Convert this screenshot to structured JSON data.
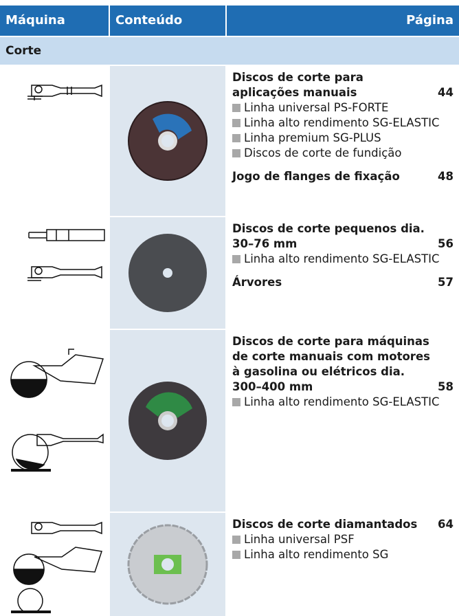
{
  "header": {
    "machine": "Máquina",
    "content": "Conteúdo",
    "page": "Página"
  },
  "section": "Corte",
  "rows": [
    {
      "entries": [
        {
          "title": "Discos de corte para aplicações manuais",
          "page": "44",
          "bullets": [
            "Linha universal PS-FORTE",
            "Linha alto rendimento SG-ELASTIC",
            "Linha premium SG-PLUS",
            "Discos de corte de fundição"
          ]
        },
        {
          "title": "Jogo de flanges de fixação",
          "page": "48",
          "bullets": []
        }
      ]
    },
    {
      "entries": [
        {
          "title": "Discos de corte pequenos dia. 30–76 mm",
          "page": "56",
          "bullets": [
            "Linha alto rendimento SG-ELASTIC"
          ]
        },
        {
          "title": "Árvores",
          "page": "57",
          "bullets": []
        }
      ]
    },
    {
      "entries": [
        {
          "title": "Discos de corte para máquinas de corte manuais com motores à gasolina ou elétricos dia. 300–400 mm",
          "page": "58",
          "bullets": [
            "Linha alto rendimento SG-ELASTIC"
          ]
        }
      ]
    },
    {
      "entries": [
        {
          "title": "Discos de corte diamantados",
          "page": "64",
          "bullets": [
            "Linha universal PSF",
            "Linha alto rendimento SG"
          ]
        }
      ]
    }
  ]
}
